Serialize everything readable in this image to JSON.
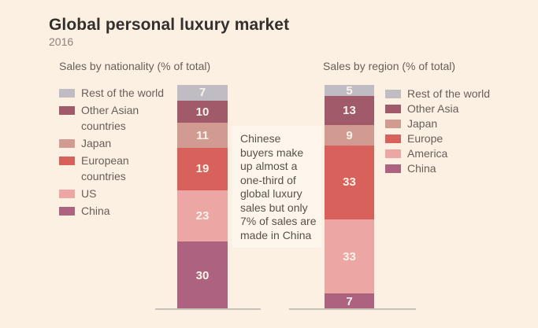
{
  "title": "Global personal luxury market",
  "subtitle": "2016",
  "annotation": {
    "text": "Chinese\nbuyers make\nup almost a\none-third of\nglobal luxury\nsales but only\n7% of sales are\nmade in China"
  },
  "colors": {
    "background": "#fcf0e3",
    "annotation_background": "#fdf6ec",
    "axis_line": "#c9c1b8",
    "value_label": "#fbf3e9",
    "rest_of_world": "#c0bcc3",
    "other_asia": "#a05a69",
    "japan": "#d29b91",
    "europe": "#d8615b",
    "america_us": "#eca6a4",
    "china": "#ad6380"
  },
  "chart_data": [
    {
      "type": "bar",
      "stacked": true,
      "title": "Sales by nationality (% of total)",
      "unit": "% of total",
      "total": 100,
      "legend_position": "left",
      "segments": [
        {
          "label": "Rest of the world",
          "legend_label": "Rest of the world",
          "value": 7,
          "color": "#c0bcc3"
        },
        {
          "label": "Other Asian countries",
          "legend_label": "Other Asian\ncountries",
          "value": 10,
          "color": "#a05a69"
        },
        {
          "label": "Japan",
          "legend_label": "Japan",
          "value": 11,
          "color": "#d29b91"
        },
        {
          "label": "European countries",
          "legend_label": "European\ncountries",
          "value": 19,
          "color": "#d8615b"
        },
        {
          "label": "US",
          "legend_label": "US",
          "value": 23,
          "color": "#eca6a4"
        },
        {
          "label": "China",
          "legend_label": "China",
          "value": 30,
          "color": "#ad6380"
        }
      ]
    },
    {
      "type": "bar",
      "stacked": true,
      "title": "Sales by region (% of total)",
      "unit": "% of total",
      "total": 100,
      "legend_position": "right",
      "segments": [
        {
          "label": "Rest of the world",
          "legend_label": "Rest of the world",
          "value": 5,
          "color": "#c0bcc3"
        },
        {
          "label": "Other Asia",
          "legend_label": "Other Asia",
          "value": 13,
          "color": "#a05a69"
        },
        {
          "label": "Japan",
          "legend_label": "Japan",
          "value": 9,
          "color": "#d29b91"
        },
        {
          "label": "Europe",
          "legend_label": "Europe",
          "value": 33,
          "color": "#d8615b"
        },
        {
          "label": "America",
          "legend_label": "America",
          "value": 33,
          "color": "#eca6a4"
        },
        {
          "label": "China",
          "legend_label": "China",
          "value": 7,
          "color": "#ad6380"
        }
      ]
    }
  ]
}
